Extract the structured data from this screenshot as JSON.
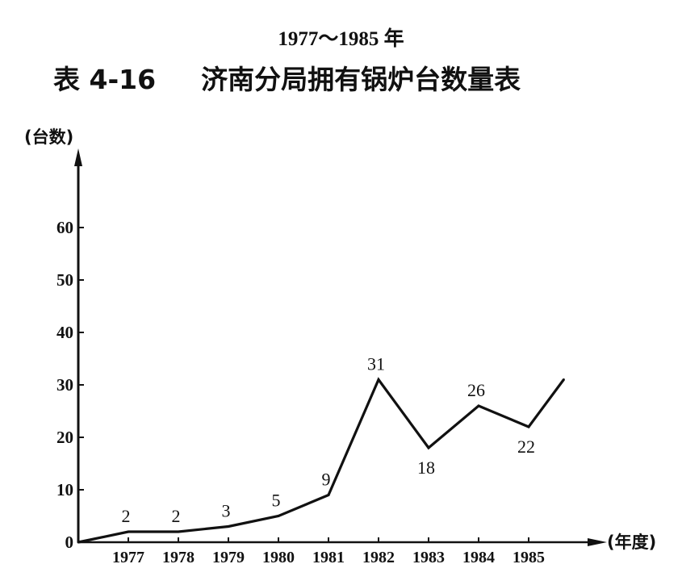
{
  "heading": {
    "year_range": "1977～1985 年",
    "table_number": "表 4-16",
    "table_title": "济南分局拥有锅炉台数量表"
  },
  "chart_data": {
    "type": "line",
    "title": "济南分局拥有锅炉台数量表",
    "subtitle": "1977～1985 年",
    "xlabel": "(年度)",
    "ylabel": "(台数)",
    "categories": [
      "1977",
      "1978",
      "1979",
      "1980",
      "1981",
      "1982",
      "1983",
      "1984",
      "1985"
    ],
    "y_ticks": [
      0,
      10,
      20,
      30,
      40,
      50,
      60
    ],
    "ylim": [
      0,
      70
    ],
    "series": [
      {
        "points": [
          {
            "x": 1976,
            "y": 0
          },
          {
            "x": 1977,
            "y": 2
          },
          {
            "x": 1978,
            "y": 2
          },
          {
            "x": 1979,
            "y": 3
          },
          {
            "x": 1980,
            "y": 5
          },
          {
            "x": 1981,
            "y": 9
          },
          {
            "x": 1982,
            "y": 31
          },
          {
            "x": 1983,
            "y": 18
          },
          {
            "x": 1984,
            "y": 26
          },
          {
            "x": 1985,
            "y": 22
          },
          {
            "x": 1985.7,
            "y": 31
          }
        ]
      }
    ],
    "data_labels": [
      {
        "x": 1977,
        "text": "2"
      },
      {
        "x": 1978,
        "text": "2"
      },
      {
        "x": 1979,
        "text": "3"
      },
      {
        "x": 1980,
        "text": "5"
      },
      {
        "x": 1981,
        "text": "9"
      },
      {
        "x": 1982,
        "text": "31"
      },
      {
        "x": 1983,
        "text": "18"
      },
      {
        "x": 1984,
        "text": "26"
      },
      {
        "x": 1985,
        "text": "22"
      }
    ],
    "grid": false,
    "legend": "none",
    "line_color": "#111111"
  }
}
